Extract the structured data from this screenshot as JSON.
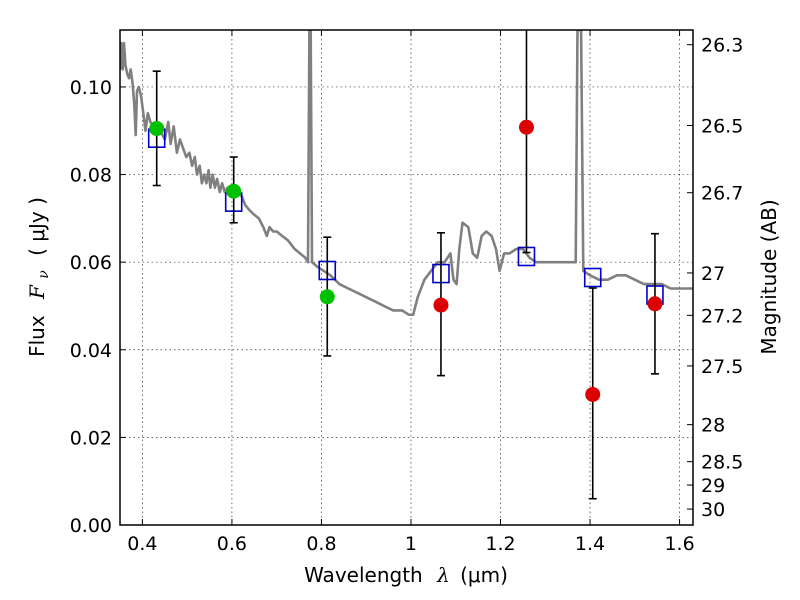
{
  "chart_data": {
    "type": "scatter",
    "xlabel_prefix": "Wavelength",
    "xlabel_symbol": "λ",
    "xlabel_unit": "(μm)",
    "ylabel_prefix": "Flux",
    "ylabel_symbol": "F",
    "ylabel_subscript": "ν",
    "ylabel_unit": "( μJy )",
    "y2label": "Magnitude (AB)",
    "xlim": [
      0.35,
      1.63
    ],
    "ylim": [
      0.0,
      0.113
    ],
    "grid": true,
    "x_ticks": [
      {
        "value": 0.4,
        "label": "0.4"
      },
      {
        "value": 0.6,
        "label": "0.6"
      },
      {
        "value": 0.8,
        "label": "0.8"
      },
      {
        "value": 1.0,
        "label": "1"
      },
      {
        "value": 1.2,
        "label": "1.2"
      },
      {
        "value": 1.4,
        "label": "1.4"
      },
      {
        "value": 1.6,
        "label": "1.6"
      }
    ],
    "y_ticks": [
      {
        "value": 0.0,
        "label": "0.00"
      },
      {
        "value": 0.02,
        "label": "0.02"
      },
      {
        "value": 0.04,
        "label": "0.04"
      },
      {
        "value": 0.06,
        "label": "0.06"
      },
      {
        "value": 0.08,
        "label": "0.08"
      },
      {
        "value": 0.1,
        "label": "0.10"
      }
    ],
    "mag_ticks": [
      {
        "value": 26.3,
        "label": "26.3"
      },
      {
        "value": 26.5,
        "label": "26.5"
      },
      {
        "value": 26.7,
        "label": "26.7"
      },
      {
        "value": 27.0,
        "label": "27"
      },
      {
        "value": 27.2,
        "label": "27.2"
      },
      {
        "value": 27.5,
        "label": "27.5"
      },
      {
        "value": 28.0,
        "label": "28"
      },
      {
        "value": 28.5,
        "label": "28.5"
      },
      {
        "value": 29.0,
        "label": "29"
      },
      {
        "value": 30.0,
        "label": "30"
      }
    ],
    "template_spectrum": {
      "color": "#808080",
      "points": [
        [
          0.35,
          0.104
        ],
        [
          0.353,
          0.11
        ],
        [
          0.356,
          0.104
        ],
        [
          0.359,
          0.11
        ],
        [
          0.362,
          0.105
        ],
        [
          0.366,
          0.103
        ],
        [
          0.37,
          0.102
        ],
        [
          0.374,
          0.104
        ],
        [
          0.378,
          0.101
        ],
        [
          0.382,
          0.096
        ],
        [
          0.385,
          0.089
        ],
        [
          0.388,
          0.099
        ],
        [
          0.392,
          0.1
        ],
        [
          0.397,
          0.098
        ],
        [
          0.402,
          0.094
        ],
        [
          0.407,
          0.09
        ],
        [
          0.412,
          0.094
        ],
        [
          0.418,
          0.092
        ],
        [
          0.425,
          0.091
        ],
        [
          0.432,
          0.089
        ],
        [
          0.44,
          0.09
        ],
        [
          0.45,
          0.088
        ],
        [
          0.458,
          0.092
        ],
        [
          0.463,
          0.087
        ],
        [
          0.47,
          0.091
        ],
        [
          0.477,
          0.085
        ],
        [
          0.484,
          0.088
        ],
        [
          0.491,
          0.086
        ],
        [
          0.498,
          0.084
        ],
        [
          0.505,
          0.085
        ],
        [
          0.511,
          0.082
        ],
        [
          0.517,
          0.084
        ],
        [
          0.522,
          0.08
        ],
        [
          0.528,
          0.082
        ],
        [
          0.533,
          0.078
        ],
        [
          0.538,
          0.08
        ],
        [
          0.543,
          0.078
        ],
        [
          0.548,
          0.081
        ],
        [
          0.552,
          0.077
        ],
        [
          0.557,
          0.08
        ],
        [
          0.562,
          0.077
        ],
        [
          0.567,
          0.079
        ],
        [
          0.573,
          0.076
        ],
        [
          0.578,
          0.078
        ],
        [
          0.584,
          0.076
        ],
        [
          0.59,
          0.077
        ],
        [
          0.598,
          0.076
        ],
        [
          0.606,
          0.076
        ],
        [
          0.614,
          0.076
        ],
        [
          0.622,
          0.075
        ],
        [
          0.63,
          0.073
        ],
        [
          0.638,
          0.072
        ],
        [
          0.648,
          0.071
        ],
        [
          0.66,
          0.07
        ],
        [
          0.67,
          0.068
        ],
        [
          0.678,
          0.066
        ],
        [
          0.684,
          0.068
        ],
        [
          0.692,
          0.067
        ],
        [
          0.7,
          0.067
        ],
        [
          0.712,
          0.066
        ],
        [
          0.725,
          0.065
        ],
        [
          0.74,
          0.063
        ],
        [
          0.752,
          0.062
        ],
        [
          0.764,
          0.061
        ],
        [
          0.77,
          0.06
        ],
        [
          0.773,
          0.113
        ],
        [
          0.776,
          0.113
        ],
        [
          0.779,
          0.06
        ],
        [
          0.79,
          0.059
        ],
        [
          0.805,
          0.058
        ],
        [
          0.82,
          0.057
        ],
        [
          0.84,
          0.055
        ],
        [
          0.86,
          0.054
        ],
        [
          0.88,
          0.053
        ],
        [
          0.9,
          0.052
        ],
        [
          0.92,
          0.051
        ],
        [
          0.94,
          0.05
        ],
        [
          0.96,
          0.049
        ],
        [
          0.98,
          0.049
        ],
        [
          0.995,
          0.048
        ],
        [
          1.005,
          0.048
        ],
        [
          1.015,
          0.052
        ],
        [
          1.03,
          0.056
        ],
        [
          1.045,
          0.058
        ],
        [
          1.06,
          0.06
        ],
        [
          1.075,
          0.06
        ],
        [
          1.088,
          0.062
        ],
        [
          1.095,
          0.056
        ],
        [
          1.102,
          0.055
        ],
        [
          1.108,
          0.063
        ],
        [
          1.115,
          0.069
        ],
        [
          1.128,
          0.068
        ],
        [
          1.138,
          0.062
        ],
        [
          1.148,
          0.061
        ],
        [
          1.158,
          0.066
        ],
        [
          1.168,
          0.067
        ],
        [
          1.18,
          0.066
        ],
        [
          1.19,
          0.063
        ],
        [
          1.198,
          0.058
        ],
        [
          1.208,
          0.062
        ],
        [
          1.22,
          0.062
        ],
        [
          1.235,
          0.063
        ],
        [
          1.25,
          0.063
        ],
        [
          1.265,
          0.061
        ],
        [
          1.28,
          0.06
        ],
        [
          1.3,
          0.06
        ],
        [
          1.32,
          0.06
        ],
        [
          1.34,
          0.06
        ],
        [
          1.36,
          0.06
        ],
        [
          1.368,
          0.06
        ],
        [
          1.372,
          0.113
        ],
        [
          1.38,
          0.113
        ],
        [
          1.385,
          0.058
        ],
        [
          1.4,
          0.057
        ],
        [
          1.42,
          0.056
        ],
        [
          1.44,
          0.056
        ],
        [
          1.46,
          0.057
        ],
        [
          1.48,
          0.057
        ],
        [
          1.5,
          0.056
        ],
        [
          1.52,
          0.055
        ],
        [
          1.54,
          0.055
        ],
        [
          1.56,
          0.055
        ],
        [
          1.58,
          0.054
        ],
        [
          1.6,
          0.054
        ],
        [
          1.62,
          0.054
        ],
        [
          1.63,
          0.054
        ]
      ]
    },
    "model_boxes": {
      "color": "#0000cc",
      "points": [
        {
          "x": 0.432,
          "y": 0.0883
        },
        {
          "x": 0.604,
          "y": 0.0737
        },
        {
          "x": 0.813,
          "y": 0.0581
        },
        {
          "x": 1.067,
          "y": 0.0574
        },
        {
          "x": 1.258,
          "y": 0.0613
        },
        {
          "x": 1.406,
          "y": 0.0565
        },
        {
          "x": 1.545,
          "y": 0.0525
        }
      ]
    },
    "observations": [
      {
        "x": 0.432,
        "y": 0.0905,
        "yerr_low": 0.0775,
        "yerr_high": 0.1036,
        "color": "#00c000"
      },
      {
        "x": 0.604,
        "y": 0.0762,
        "yerr_low": 0.069,
        "yerr_high": 0.084,
        "color": "#00c000"
      },
      {
        "x": 0.813,
        "y": 0.0521,
        "yerr_low": 0.0386,
        "yerr_high": 0.0657,
        "color": "#00c000"
      },
      {
        "x": 1.067,
        "y": 0.0502,
        "yerr_low": 0.0341,
        "yerr_high": 0.0667,
        "color": "#dd0000"
      },
      {
        "x": 1.258,
        "y": 0.0908,
        "yerr_low": 0.0622,
        "yerr_high": 0.113,
        "color": "#dd0000"
      },
      {
        "x": 1.406,
        "y": 0.0298,
        "yerr_low": 0.006,
        "yerr_high": 0.0541,
        "color": "#dd0000"
      },
      {
        "x": 1.545,
        "y": 0.0505,
        "yerr_low": 0.0345,
        "yerr_high": 0.0665,
        "color": "#dd0000"
      }
    ]
  }
}
